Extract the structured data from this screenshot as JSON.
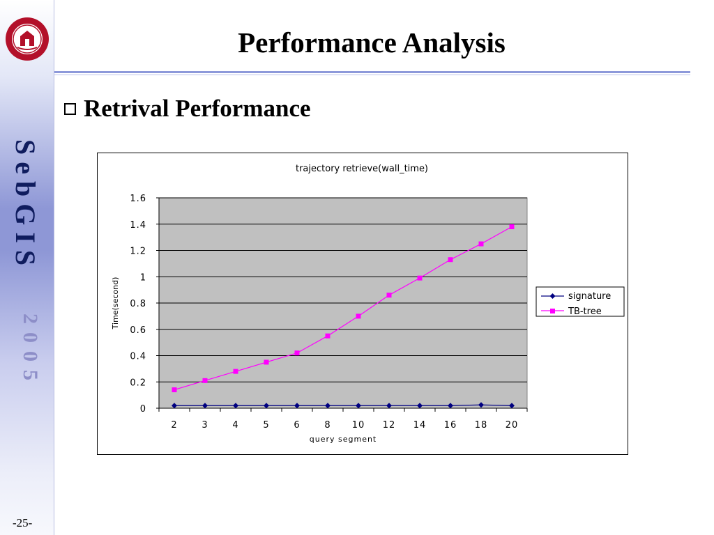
{
  "slide": {
    "title": "Performance Analysis",
    "heading": "Retrival Performance",
    "page_number": "-25-"
  },
  "sidebar": {
    "title": "SebGIS",
    "year": "2005"
  },
  "colors": {
    "sidebar_text": "#0f1c5e",
    "plot_background": "#c0c0c0",
    "signature": "#000080",
    "tb_tree": "#ff00ff"
  },
  "icons": {
    "logo": "university-seal-icon",
    "bullet": "hollow-square-bullet-icon"
  },
  "chart_data": {
    "type": "line",
    "title": "trajectory retrieve(wall_time)",
    "xlabel": "query segment",
    "ylabel": "Time(second)",
    "categories": [
      "2",
      "3",
      "4",
      "5",
      "6",
      "8",
      "10",
      "12",
      "14",
      "16",
      "18",
      "20"
    ],
    "ylim": [
      0,
      1.6
    ],
    "yticks": [
      "0",
      "0.2",
      "0.4",
      "0.6",
      "0.8",
      "1",
      "1.2",
      "1.4",
      "1.6"
    ],
    "grid": true,
    "legend_position": "right",
    "series": [
      {
        "name": "signature",
        "marker": "diamond",
        "color": "#000080",
        "values": [
          0.02,
          0.02,
          0.02,
          0.02,
          0.02,
          0.02,
          0.02,
          0.02,
          0.02,
          0.02,
          0.025,
          0.02
        ]
      },
      {
        "name": "TB-tree",
        "marker": "square",
        "color": "#ff00ff",
        "values": [
          0.14,
          0.21,
          0.28,
          0.35,
          0.42,
          0.55,
          0.7,
          0.86,
          0.99,
          1.13,
          1.25,
          1.38
        ]
      }
    ]
  }
}
